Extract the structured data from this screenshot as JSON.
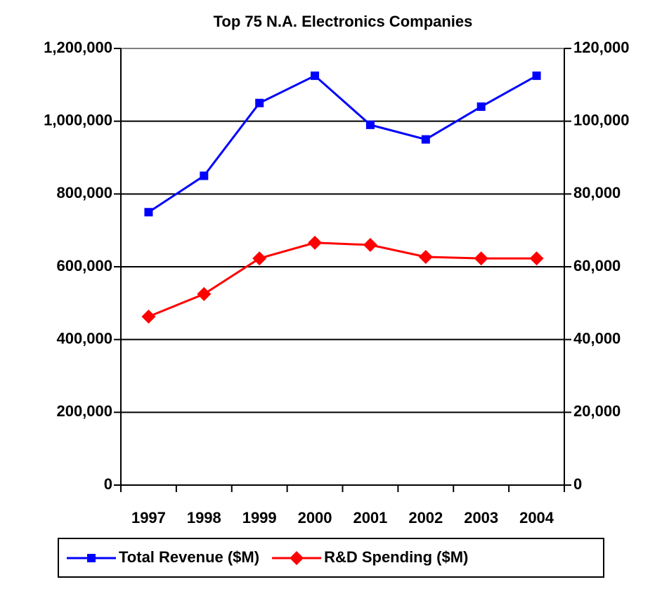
{
  "chart_data": {
    "type": "line",
    "title": "Top 75 N.A. Electronics Companies",
    "categories": [
      "1997",
      "1998",
      "1999",
      "2000",
      "2001",
      "2002",
      "2003",
      "2004"
    ],
    "series": [
      {
        "name": "Total Revenue ($M)",
        "color": "#0000ff",
        "marker": "square",
        "values": [
          750000,
          850000,
          1050000,
          1125000,
          990000,
          950000,
          1040000,
          1125000
        ]
      },
      {
        "name": "R&D Spending ($M)",
        "color": "#ff0000",
        "marker": "diamond",
        "axis": "y2",
        "values": [
          46300,
          52500,
          62300,
          66600,
          66000,
          62700,
          62300,
          62300
        ]
      }
    ],
    "ylim": [
      0,
      1200000
    ],
    "yticks": [
      0,
      {
        "value": 200000,
        "label": "200,000"
      },
      {
        "value": 400000,
        "label": "400,000"
      },
      {
        "value": 600000,
        "label": "600,000"
      },
      {
        "value": 800000,
        "label": "800,000"
      },
      {
        "value": 1000000,
        "label": "1,000,000"
      },
      {
        "value": 1200000,
        "label": "1,200,000"
      }
    ],
    "y2lim": [
      0,
      120000
    ],
    "y2ticks": [
      0,
      {
        "value": 20000,
        "label": "20,000"
      },
      {
        "value": 40000,
        "label": "40,000"
      },
      {
        "value": 60000,
        "label": "60,000"
      },
      {
        "value": 80000,
        "label": "80,000"
      },
      {
        "value": 100000,
        "label": "100,000"
      },
      {
        "value": 120000,
        "label": "120,000"
      }
    ],
    "grid": true,
    "legend": "bottom"
  }
}
